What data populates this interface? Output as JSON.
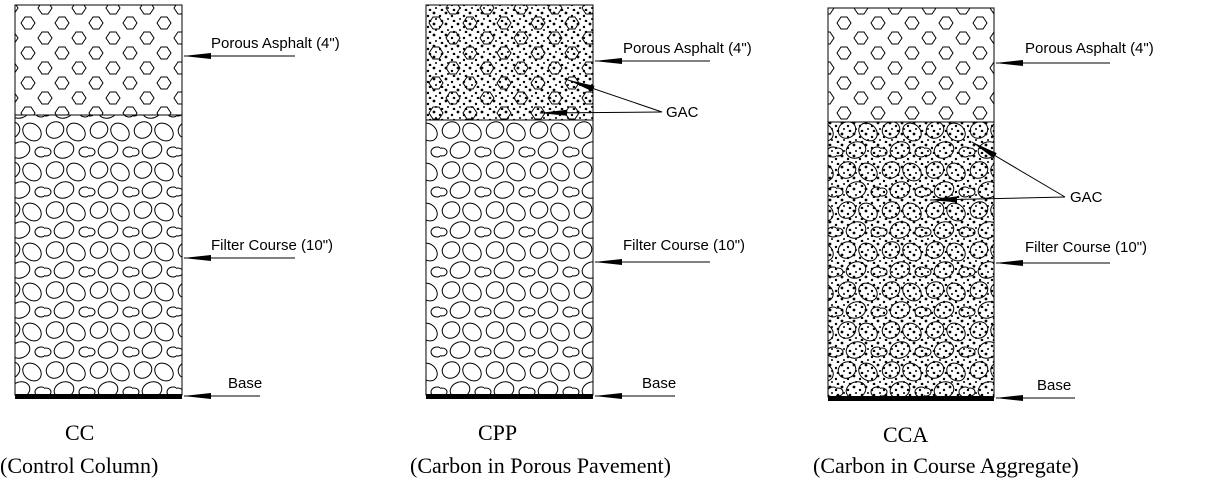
{
  "columns": [
    {
      "code": "CC",
      "name": "(Control Column)",
      "layers": [
        "Porous Asphalt (4\")",
        "Filter Course (10\")",
        "Base"
      ]
    },
    {
      "code": "CPP",
      "name": "(Carbon in Porous Pavement)",
      "layers": [
        "Porous Asphalt (4\")",
        "Filter Course (10\")",
        "Base"
      ],
      "gac": "GAC"
    },
    {
      "code": "CCA",
      "name": "(Carbon in Course Aggregate)",
      "layers": [
        "Porous Asphalt (4\")",
        "Filter Course (10\")",
        "Base"
      ],
      "gac": "GAC"
    }
  ]
}
